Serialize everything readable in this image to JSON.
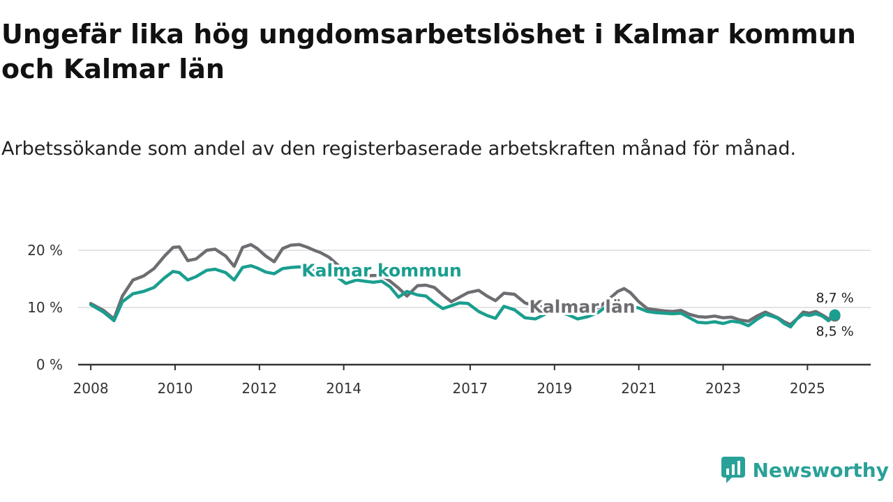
{
  "title": "Ungefär lika hög ungdomsarbetslöshet i Kalmar kommun och Kalmar län",
  "subtitle": "Arbetssökande som andel av den registerbaserade arbetskraften månad för månad.",
  "brand": {
    "name": "Newsworthy",
    "icon": "newsworthy-logo-icon",
    "color": "#2aa198"
  },
  "chart_data": {
    "type": "line",
    "title": "Ungefär lika hög ungdomsarbetslöshet i Kalmar kommun och Kalmar län",
    "xlabel": "",
    "ylabel": "",
    "xlim": [
      2007.7,
      2026.5
    ],
    "ylim": [
      0,
      20
    ],
    "yticks": [
      0,
      10,
      20
    ],
    "ytick_labels": [
      "0 %",
      "10 %",
      "20 %"
    ],
    "xticks": [
      2008,
      2010,
      2012,
      2014,
      2017,
      2019,
      2021,
      2023,
      2025
    ],
    "xtick_labels": [
      "2008",
      "2010",
      "2012",
      "2014",
      "2017",
      "2019",
      "2021",
      "2023",
      "2025"
    ],
    "grid": true,
    "series": [
      {
        "name": "Kalmar län",
        "color": "#6d6d72",
        "end_label": "8,5 %",
        "x": [
          2008.0,
          2008.3,
          2008.55,
          2008.75,
          2009.0,
          2009.25,
          2009.5,
          2009.75,
          2009.95,
          2010.1,
          2010.3,
          2010.5,
          2010.75,
          2010.95,
          2011.2,
          2011.4,
          2011.6,
          2011.8,
          2011.95,
          2012.15,
          2012.35,
          2012.55,
          2012.75,
          2012.95,
          2013.15,
          2013.3,
          2013.45,
          2013.65,
          2013.85,
          2014.05,
          2014.3,
          2014.5,
          2014.7,
          2014.9,
          2015.1,
          2015.3,
          2015.5,
          2015.75,
          2015.95,
          2016.15,
          2016.35,
          2016.55,
          2016.75,
          2016.95,
          2017.2,
          2017.4,
          2017.6,
          2017.8,
          2018.05,
          2018.3,
          2018.55,
          2018.8,
          2019.05,
          2019.3,
          2019.55,
          2019.8,
          2020.05,
          2020.3,
          2020.5,
          2020.65,
          2020.8,
          2021.0,
          2021.2,
          2021.4,
          2021.6,
          2021.8,
          2022.0,
          2022.2,
          2022.4,
          2022.6,
          2022.8,
          2023.0,
          2023.2,
          2023.4,
          2023.6,
          2023.8,
          2024.0,
          2024.15,
          2024.3,
          2024.45,
          2024.6,
          2024.75,
          2024.9,
          2025.05,
          2025.2,
          2025.35,
          2025.5,
          2025.65
        ],
        "y": [
          10.7,
          9.5,
          8.0,
          12.0,
          14.8,
          15.5,
          16.8,
          19.0,
          20.5,
          20.6,
          18.2,
          18.5,
          20.0,
          20.2,
          19.0,
          17.2,
          20.5,
          21.0,
          20.3,
          19.0,
          18.0,
          20.3,
          20.9,
          21.0,
          20.5,
          20.0,
          19.6,
          18.8,
          17.5,
          16.5,
          15.8,
          15.5,
          15.6,
          15.6,
          14.6,
          13.4,
          12.0,
          13.8,
          13.9,
          13.5,
          12.2,
          11.0,
          11.8,
          12.6,
          13.0,
          12.0,
          11.2,
          12.5,
          12.3,
          10.8,
          10.2,
          10.0,
          10.0,
          9.8,
          9.5,
          9.5,
          10.0,
          11.5,
          12.8,
          13.3,
          12.6,
          11.0,
          9.8,
          9.6,
          9.4,
          9.3,
          9.5,
          8.8,
          8.4,
          8.3,
          8.5,
          8.2,
          8.3,
          7.8,
          7.6,
          8.5,
          9.2,
          8.7,
          8.2,
          7.5,
          7.0,
          8.0,
          9.2,
          9.0,
          9.3,
          8.7,
          8.0,
          8.5
        ]
      },
      {
        "name": "Kalmar kommun",
        "color": "#1a9e8f",
        "end_label": "8,7 %",
        "x": [
          2008.0,
          2008.3,
          2008.55,
          2008.75,
          2009.0,
          2009.25,
          2009.5,
          2009.75,
          2009.95,
          2010.1,
          2010.3,
          2010.5,
          2010.75,
          2010.95,
          2011.2,
          2011.4,
          2011.6,
          2011.8,
          2011.95,
          2012.15,
          2012.35,
          2012.55,
          2012.75,
          2012.95,
          2013.15,
          2013.3,
          2013.45,
          2013.65,
          2013.85,
          2014.05,
          2014.3,
          2014.5,
          2014.7,
          2014.9,
          2015.1,
          2015.3,
          2015.5,
          2015.75,
          2015.95,
          2016.15,
          2016.35,
          2016.55,
          2016.75,
          2016.95,
          2017.2,
          2017.4,
          2017.6,
          2017.8,
          2018.05,
          2018.3,
          2018.55,
          2018.8,
          2019.05,
          2019.3,
          2019.55,
          2019.8,
          2020.05,
          2020.3,
          2020.5,
          2020.65,
          2020.8,
          2021.0,
          2021.2,
          2021.4,
          2021.6,
          2021.8,
          2022.0,
          2022.2,
          2022.4,
          2022.6,
          2022.8,
          2023.0,
          2023.2,
          2023.4,
          2023.6,
          2023.8,
          2024.0,
          2024.15,
          2024.3,
          2024.45,
          2024.6,
          2024.75,
          2024.9,
          2025.05,
          2025.2,
          2025.35,
          2025.5,
          2025.65
        ],
        "y": [
          10.5,
          9.2,
          7.7,
          11.0,
          12.4,
          12.8,
          13.5,
          15.2,
          16.3,
          16.1,
          14.8,
          15.4,
          16.5,
          16.7,
          16.1,
          14.8,
          17.0,
          17.3,
          16.9,
          16.2,
          15.9,
          16.8,
          17.0,
          17.1,
          16.8,
          16.4,
          16.1,
          15.8,
          15.3,
          14.2,
          14.8,
          14.6,
          14.4,
          14.6,
          13.6,
          11.8,
          12.8,
          12.2,
          12.0,
          10.8,
          9.8,
          10.3,
          10.8,
          10.7,
          9.3,
          8.6,
          8.1,
          10.2,
          9.6,
          8.2,
          8.0,
          8.9,
          9.2,
          8.8,
          8.0,
          8.4,
          9.2,
          10.6,
          10.8,
          10.5,
          10.2,
          9.9,
          9.3,
          9.1,
          9.0,
          8.9,
          9.0,
          8.2,
          7.4,
          7.3,
          7.5,
          7.2,
          7.6,
          7.4,
          6.8,
          7.9,
          8.8,
          8.5,
          8.1,
          7.2,
          6.6,
          8.0,
          8.8,
          8.6,
          8.9,
          8.5,
          7.7,
          8.7
        ]
      }
    ],
    "annotations": [
      {
        "series": "Kalmar kommun",
        "text": "Kalmar kommun",
        "x": 2013.0,
        "y": 16.5
      },
      {
        "series": "Kalmar län",
        "text": "Kalmar län",
        "x": 2018.4,
        "y": 10.2
      }
    ]
  }
}
